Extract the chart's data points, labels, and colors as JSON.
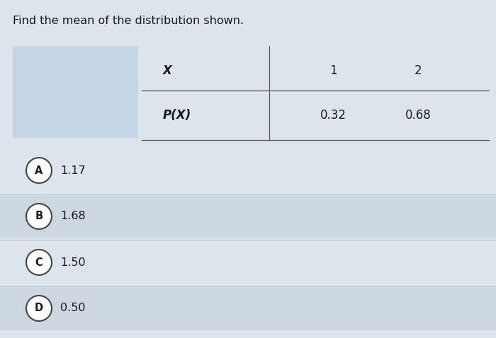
{
  "title": "Find the mean of the distribution shown.",
  "table": {
    "col_header": "X",
    "row_label": "P(X)",
    "x_vals": [
      "1",
      "2"
    ],
    "p_vals": [
      "0.32",
      "0.68"
    ]
  },
  "choices": [
    {
      "label": "A",
      "value": "1.17"
    },
    {
      "label": "B",
      "value": "1.68"
    },
    {
      "label": "C",
      "value": "1.50"
    },
    {
      "label": "D",
      "value": "0.50"
    }
  ],
  "overall_bg": "#dce4ec",
  "blue_rect_color": "#c5d5e5",
  "table_row_bg": "#dce4ec",
  "choice_row_bg_odd": "#dce4ec",
  "choice_row_bg_even": "#cdd7e2",
  "text_color": "#1a1a1a",
  "circle_border": "#444444",
  "line_color": "#555555"
}
